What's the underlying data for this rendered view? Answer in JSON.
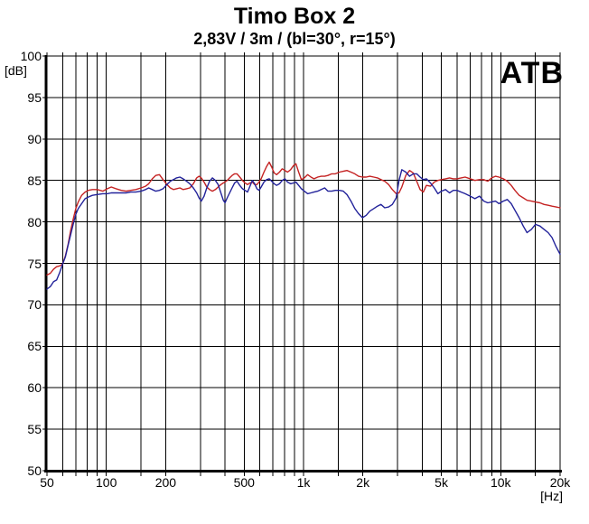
{
  "watermark": {
    "label": "ATB"
  },
  "chart_data": {
    "type": "line",
    "title": "Timo Box 2",
    "subtitle": "2,83V / 3m / (bl=30°, r=15°)",
    "xlabel": "[Hz]",
    "ylabel": "[dB]",
    "x_scale": "log",
    "xlim": [
      50,
      20000
    ],
    "ylim": [
      50,
      100
    ],
    "grid": true,
    "legend": "none",
    "y_ticks": [
      100,
      95,
      90,
      85,
      80,
      75,
      70,
      65,
      60,
      55,
      50
    ],
    "x_tick_labels": [
      "50",
      "100",
      "200",
      "500",
      "1k",
      "2k",
      "5k",
      "10k",
      "20k"
    ],
    "x_tick_freqs": [
      50,
      100,
      200,
      500,
      1000,
      2000,
      5000,
      10000,
      20000
    ],
    "grid_freqs": [
      50,
      60,
      70,
      80,
      90,
      100,
      150,
      200,
      300,
      400,
      500,
      600,
      700,
      800,
      900,
      1000,
      1500,
      2000,
      3000,
      4000,
      5000,
      6000,
      7000,
      8000,
      9000,
      10000,
      15000,
      20000
    ],
    "x_hz": [
      50,
      52,
      54,
      56,
      58,
      60,
      62,
      64,
      66,
      68,
      70,
      72,
      75,
      78,
      81,
      85,
      90,
      96,
      101,
      106,
      112,
      119,
      126,
      133,
      141,
      150,
      158,
      164,
      171,
      178,
      186,
      194,
      203,
      211,
      219,
      227,
      236,
      245,
      255,
      265,
      276,
      287,
      295,
      303,
      313,
      323,
      334,
      345,
      357,
      369,
      381,
      392,
      400,
      410,
      422,
      434,
      447,
      460,
      475,
      490,
      505,
      520,
      535,
      550,
      565,
      580,
      595,
      610,
      630,
      650,
      670,
      690,
      710,
      730,
      755,
      780,
      805,
      830,
      860,
      890,
      915,
      945,
      975,
      1010,
      1050,
      1090,
      1130,
      1180,
      1230,
      1280,
      1330,
      1390,
      1450,
      1520,
      1590,
      1660,
      1740,
      1820,
      1900,
      1990,
      2080,
      2170,
      2270,
      2370,
      2470,
      2580,
      2700,
      2820,
      2950,
      3050,
      3150,
      3300,
      3450,
      3600,
      3750,
      3900,
      4050,
      4200,
      4400,
      4600,
      4800,
      5000,
      5250,
      5500,
      5750,
      6000,
      6300,
      6600,
      7000,
      7400,
      7800,
      8200,
      8600,
      9000,
      9400,
      9800,
      10300,
      10800,
      11300,
      11800,
      12400,
      13000,
      13600,
      14300,
      15000,
      15800,
      16600,
      17400,
      18200,
      19100,
      20000
    ],
    "series": [
      {
        "name": "red-curve",
        "color": "#c42222",
        "values_db": [
          73.6,
          73.8,
          74.3,
          74.6,
          74.7,
          74.9,
          75.9,
          77.3,
          79.0,
          80.4,
          81.6,
          82.4,
          83.2,
          83.6,
          83.8,
          83.9,
          83.9,
          83.7,
          84.0,
          84.2,
          84.0,
          83.8,
          83.7,
          83.8,
          83.9,
          84.1,
          84.3,
          84.6,
          85.2,
          85.6,
          85.7,
          85.1,
          84.5,
          84.1,
          83.9,
          84.0,
          84.1,
          83.9,
          84.0,
          84.1,
          84.6,
          85.3,
          85.5,
          85.3,
          84.8,
          84.2,
          83.9,
          83.7,
          83.9,
          84.2,
          84.5,
          84.7,
          84.8,
          85.0,
          85.3,
          85.6,
          85.8,
          85.8,
          85.4,
          85.0,
          84.7,
          84.5,
          84.7,
          84.8,
          84.5,
          84.5,
          84.8,
          85.2,
          86.0,
          86.7,
          87.2,
          86.6,
          85.9,
          85.7,
          86.0,
          86.4,
          86.2,
          86.0,
          86.3,
          86.8,
          87.0,
          86.0,
          85.1,
          85.3,
          85.7,
          85.4,
          85.2,
          85.4,
          85.5,
          85.5,
          85.6,
          85.8,
          85.8,
          86.0,
          86.1,
          86.2,
          86.0,
          85.8,
          85.5,
          85.4,
          85.4,
          85.5,
          85.4,
          85.3,
          85.1,
          84.9,
          84.5,
          83.9,
          83.4,
          83.5,
          84.2,
          85.6,
          86.2,
          85.9,
          84.9,
          83.9,
          83.6,
          84.4,
          84.3,
          84.8,
          85.0,
          85.1,
          85.2,
          85.3,
          85.2,
          85.2,
          85.3,
          85.4,
          85.2,
          85.0,
          85.1,
          85.1,
          84.9,
          85.3,
          85.5,
          85.4,
          85.2,
          84.9,
          84.4,
          83.8,
          83.2,
          82.9,
          82.6,
          82.5,
          82.4,
          82.3,
          82.1,
          82.0,
          81.9,
          81.8,
          81.7
        ]
      },
      {
        "name": "blue-curve",
        "color": "#22229a",
        "values_db": [
          71.9,
          72.2,
          72.8,
          73.0,
          73.9,
          74.9,
          75.8,
          77.2,
          78.5,
          79.8,
          80.9,
          81.6,
          82.2,
          82.8,
          83.0,
          83.2,
          83.3,
          83.4,
          83.4,
          83.5,
          83.5,
          83.5,
          83.5,
          83.6,
          83.6,
          83.7,
          83.9,
          84.1,
          83.9,
          83.7,
          83.8,
          84.0,
          84.5,
          84.9,
          85.1,
          85.3,
          85.4,
          85.2,
          84.9,
          84.6,
          84.1,
          83.5,
          82.9,
          82.5,
          83.1,
          84.1,
          84.9,
          85.3,
          85.0,
          84.5,
          83.5,
          82.6,
          82.3,
          82.9,
          83.5,
          84.1,
          84.7,
          84.9,
          84.4,
          84.0,
          83.8,
          83.6,
          84.3,
          85.0,
          84.6,
          84.0,
          83.8,
          84.2,
          84.8,
          85.1,
          85.2,
          84.9,
          84.6,
          84.4,
          84.6,
          85.0,
          85.2,
          84.8,
          84.6,
          84.7,
          84.8,
          84.4,
          84.0,
          83.7,
          83.4,
          83.5,
          83.6,
          83.7,
          83.9,
          84.1,
          83.7,
          83.7,
          83.8,
          83.8,
          83.7,
          83.3,
          82.5,
          81.6,
          81.0,
          80.5,
          80.8,
          81.3,
          81.6,
          81.9,
          82.1,
          81.7,
          81.8,
          82.1,
          82.9,
          85.0,
          86.3,
          86.0,
          85.5,
          85.8,
          85.8,
          85.4,
          85.1,
          85.2,
          84.7,
          84.1,
          83.4,
          83.7,
          83.9,
          83.5,
          83.8,
          83.8,
          83.6,
          83.4,
          83.1,
          82.8,
          83.1,
          82.5,
          82.3,
          82.4,
          82.5,
          82.2,
          82.5,
          82.7,
          82.2,
          81.4,
          80.5,
          79.5,
          78.7,
          79.1,
          79.7,
          79.5,
          79.1,
          78.7,
          78.1,
          77.0,
          76.1
        ]
      }
    ]
  }
}
